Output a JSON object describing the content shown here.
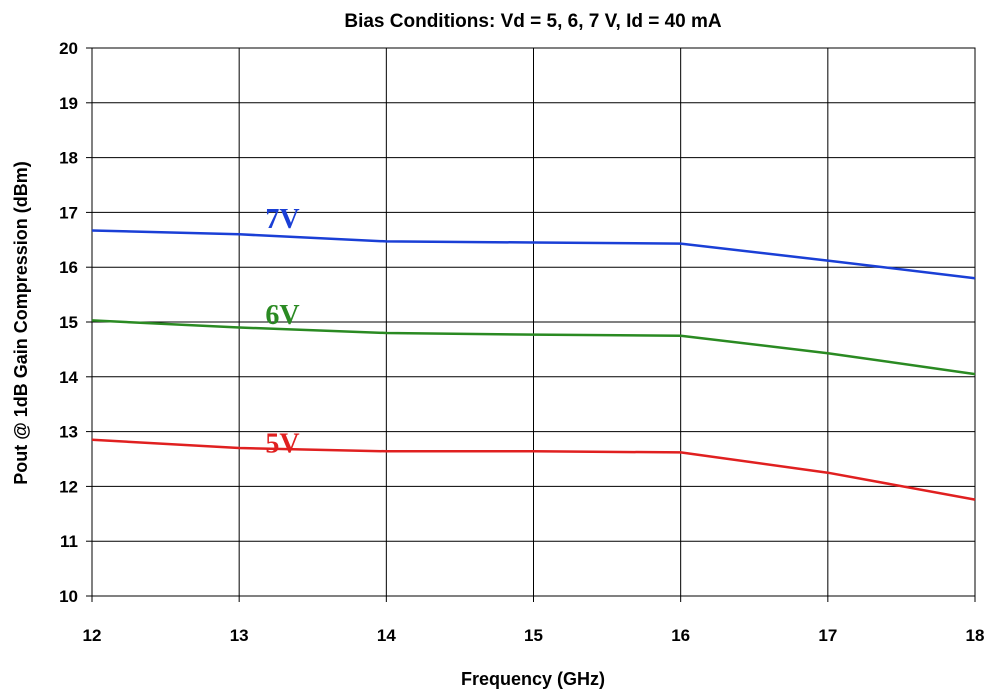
{
  "chart_data": {
    "type": "line",
    "title": "Bias Conditions:  Vd = 5, 6, 7 V, Id = 40 mA",
    "xlabel": "Frequency (GHz)",
    "ylabel": "Pout @ 1dB Gain Compression (dBm)",
    "xlim": [
      12,
      18
    ],
    "ylim": [
      10,
      20
    ],
    "xticks": [
      12,
      13,
      14,
      15,
      16,
      17,
      18
    ],
    "yticks": [
      10,
      11,
      12,
      13,
      14,
      15,
      16,
      17,
      18,
      19,
      20
    ],
    "grid": true,
    "legend": "none",
    "series": [
      {
        "name": "7V",
        "color": "#1a3fd6",
        "label_at": [
          13.3,
          16.9
        ],
        "x": [
          12,
          13,
          14,
          15,
          16,
          17,
          18
        ],
        "y": [
          16.67,
          16.6,
          16.47,
          16.45,
          16.43,
          16.12,
          15.8
        ]
      },
      {
        "name": "6V",
        "color": "#2a8a22",
        "label_at": [
          13.3,
          15.15
        ],
        "x": [
          12,
          13,
          14,
          15,
          16,
          17,
          18
        ],
        "y": [
          15.03,
          14.9,
          14.8,
          14.77,
          14.75,
          14.43,
          14.05
        ]
      },
      {
        "name": "5V",
        "color": "#e02020",
        "label_at": [
          13.3,
          12.8
        ],
        "x": [
          12,
          13,
          14,
          15,
          16,
          17,
          18
        ],
        "y": [
          12.85,
          12.7,
          12.64,
          12.64,
          12.62,
          12.25,
          11.76
        ]
      }
    ]
  }
}
